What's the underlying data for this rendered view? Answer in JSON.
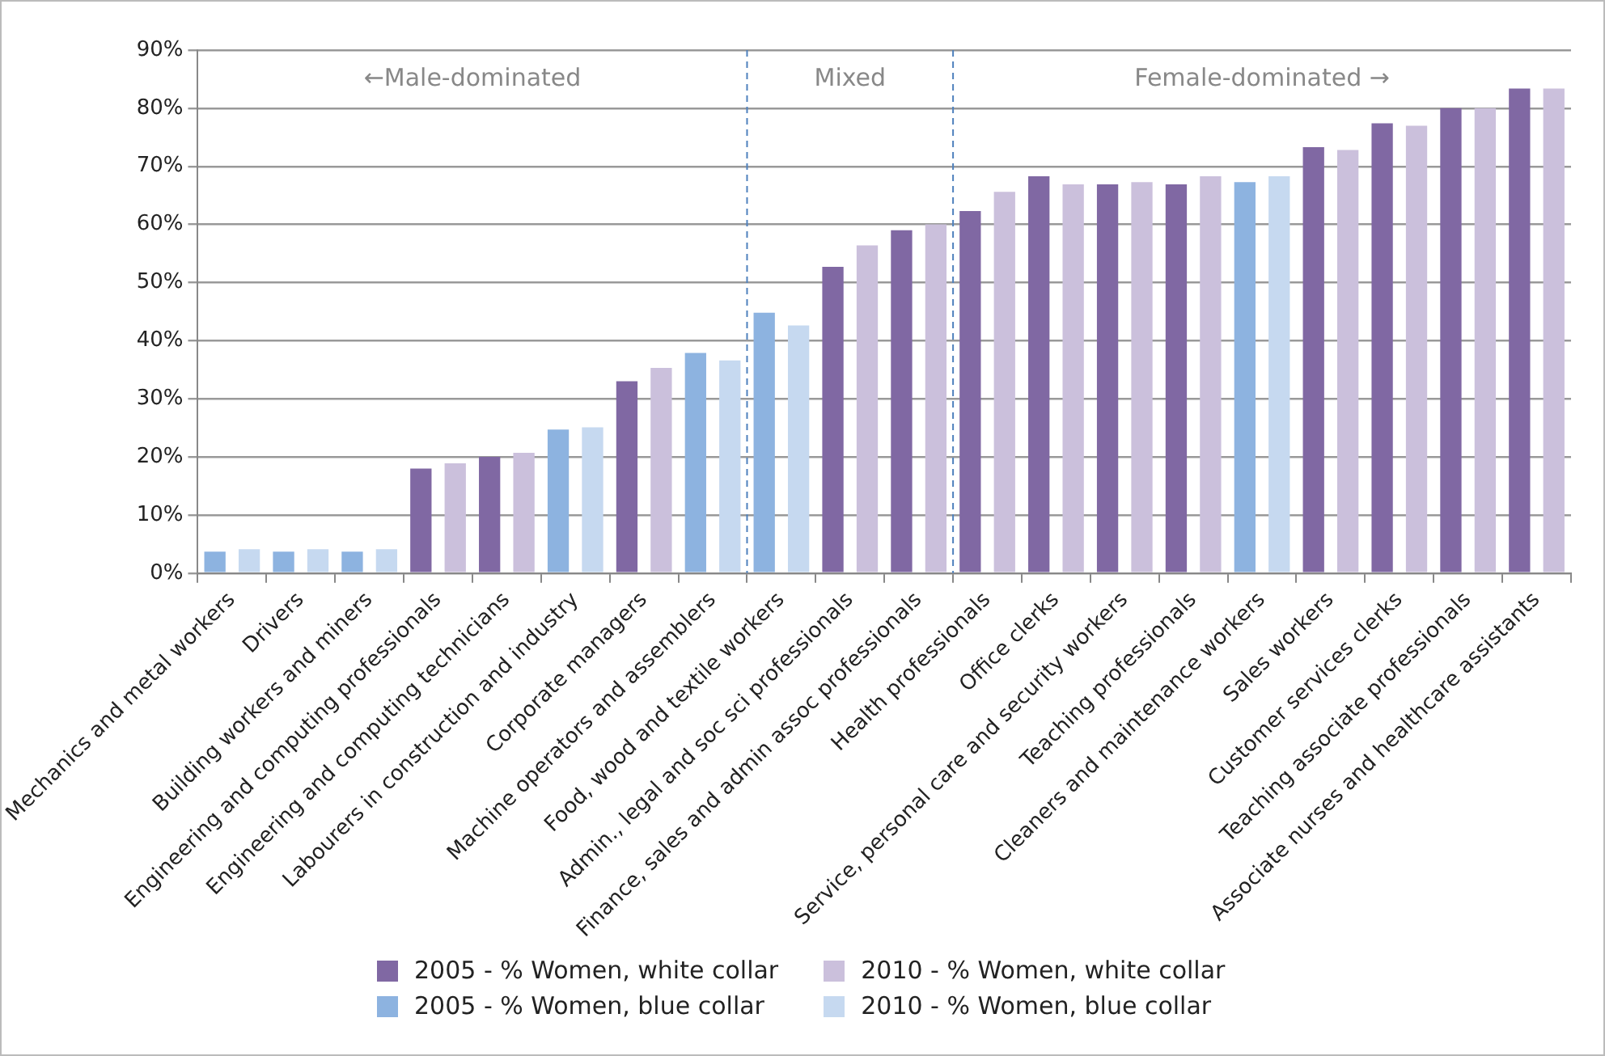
{
  "chart_data": {
    "type": "bar",
    "categories": [
      "Mechanics and metal workers",
      "Drivers",
      "Building workers and miners",
      "Engineering and computing professionals",
      "Engineering and computing technicians",
      "Labourers in construction and industry",
      "Corporate managers",
      "Machine operators and assemblers",
      "Food, wood and textile workers",
      "Admin., legal and soc sci professionals",
      "Finance, sales and admin assoc professionals",
      "Health professionals",
      "Office clerks",
      "Service, personal care and security workers",
      "Teaching professionals",
      "Cleaners and maintenance workers",
      "Sales workers",
      "Customer services clerks",
      "Teaching associate professionals",
      "Associate nurses and healthcare assistants"
    ],
    "series": [
      {
        "name": "2005 - % Women, white collar",
        "color": "#8068a3",
        "values": [
          null,
          null,
          null,
          18,
          20,
          null,
          33,
          null,
          null,
          52.7,
          59,
          62.3,
          68.3,
          66.9,
          66.9,
          null,
          73.3,
          77.4,
          80,
          83.4
        ]
      },
      {
        "name": "2005 - % Women, blue collar",
        "color": "#8db3e0",
        "values": [
          3.7,
          3.7,
          3.7,
          null,
          null,
          24.7,
          null,
          37.9,
          44.8,
          null,
          null,
          null,
          null,
          null,
          null,
          67.3,
          null,
          null,
          null,
          null
        ]
      },
      {
        "name": "2010 - % Women, white collar",
        "color": "#cbc0dc",
        "values": [
          null,
          null,
          null,
          18.9,
          20.7,
          null,
          35.3,
          null,
          null,
          56.4,
          60,
          65.6,
          66.9,
          67.3,
          68.3,
          null,
          72.8,
          77,
          80,
          83.4
        ]
      },
      {
        "name": "2010 - % Women, blue collar",
        "color": "#c6d9f0",
        "values": [
          4.1,
          4.1,
          4.1,
          null,
          null,
          25.1,
          null,
          36.6,
          42.6,
          null,
          null,
          null,
          null,
          null,
          null,
          68.3,
          null,
          null,
          null,
          null
        ]
      }
    ],
    "ylim": [
      0,
      90
    ],
    "yticks": [
      {
        "value": 0,
        "label": "0%"
      },
      {
        "value": 10,
        "label": "10%"
      },
      {
        "value": 20,
        "label": "20%"
      },
      {
        "value": 30,
        "label": "30%"
      },
      {
        "value": 40,
        "label": "40%"
      },
      {
        "value": 50,
        "label": "50%"
      },
      {
        "value": 60,
        "label": "60%"
      },
      {
        "value": 70,
        "label": "70%"
      },
      {
        "value": 80,
        "label": "80%"
      },
      {
        "value": 90,
        "label": "90%"
      }
    ],
    "grid": "y",
    "annotations": [
      "←Male-dominated",
      "Mixed",
      "Female-dominated →"
    ],
    "legend": "bottom"
  }
}
